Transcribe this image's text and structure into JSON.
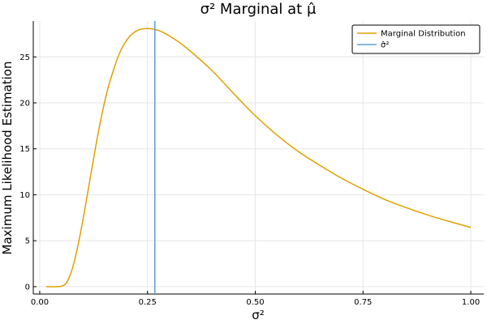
{
  "chart_data": {
    "type": "line",
    "title": "σ² Marginal at μ̂",
    "xlabel": "σ²",
    "ylabel": "Maximum Likelihood Estimation",
    "xlim": [
      -0.015,
      1.03
    ],
    "ylim": [
      -0.8,
      28.9
    ],
    "xticks": [
      0.0,
      0.25,
      0.5,
      0.75,
      1.0
    ],
    "xtick_labels": [
      "0.00",
      "0.25",
      "0.50",
      "0.75",
      "1.00"
    ],
    "yticks": [
      0,
      5,
      10,
      15,
      20,
      25
    ],
    "ytick_labels": [
      "0",
      "5",
      "10",
      "15",
      "20",
      "25"
    ],
    "grid": true,
    "legend_position": "top-right",
    "series": [
      {
        "name": "Marginal Distribution",
        "color": "#e0a000",
        "x": [
          0.015,
          0.04,
          0.05,
          0.06,
          0.07,
          0.08,
          0.09,
          0.1,
          0.11,
          0.12,
          0.13,
          0.14,
          0.15,
          0.16,
          0.17,
          0.18,
          0.19,
          0.2,
          0.21,
          0.22,
          0.23,
          0.24,
          0.25,
          0.26,
          0.27,
          0.28,
          0.3,
          0.32,
          0.35,
          0.4,
          0.45,
          0.5,
          0.55,
          0.6,
          0.65,
          0.7,
          0.75,
          0.8,
          0.85,
          0.9,
          0.95,
          1.0
        ],
        "y": [
          0.0,
          0.0,
          0.05,
          0.3,
          1.2,
          2.7,
          4.8,
          7.2,
          9.9,
          12.6,
          15.3,
          17.8,
          20.0,
          21.9,
          23.4,
          24.8,
          25.9,
          26.7,
          27.3,
          27.7,
          27.95,
          28.05,
          28.08,
          28.05,
          27.95,
          27.8,
          27.3,
          26.7,
          25.6,
          23.5,
          21.0,
          18.6,
          16.5,
          14.7,
          13.2,
          11.8,
          10.6,
          9.5,
          8.6,
          7.8,
          7.1,
          6.45
        ]
      },
      {
        "name": "σ̂²",
        "color": "#5b9fd6",
        "type": "vline",
        "x": 0.267
      }
    ]
  }
}
